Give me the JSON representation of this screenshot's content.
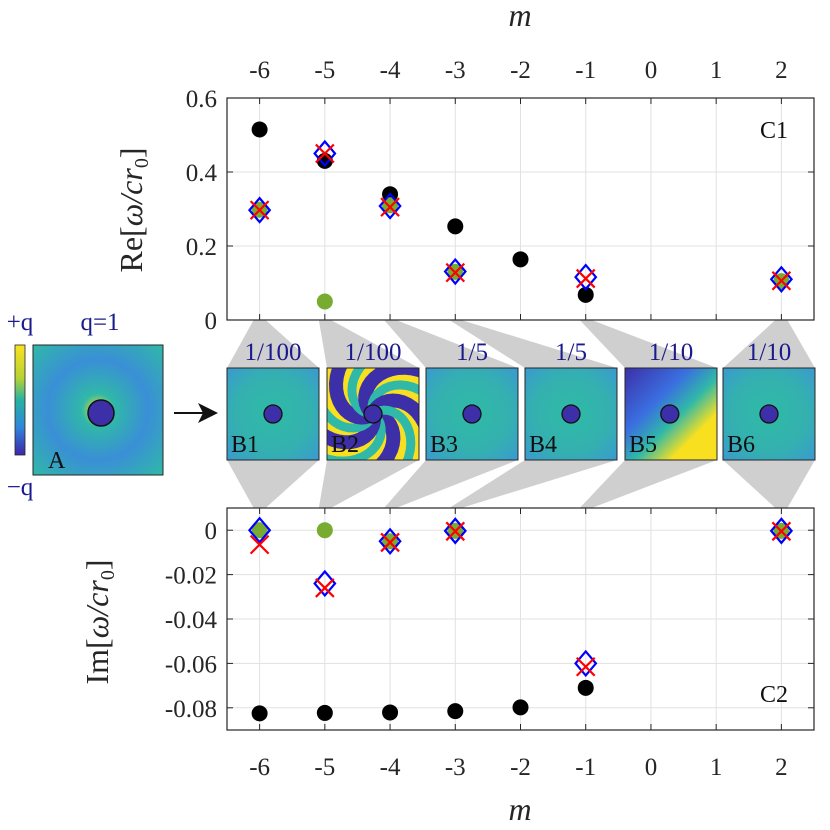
{
  "chart_data": [
    {
      "id": "C1",
      "type": "scatter",
      "panel_label": "C1",
      "top_xlabel": "m",
      "ylabel_prefix": "Re",
      "ylabel_frac": "ω/cr",
      "ylabel_sub": "0",
      "x_ticks": [
        "-6",
        "-5",
        "-4",
        "-3",
        "-2",
        "-1",
        "0",
        "1",
        "2"
      ],
      "x_range": [
        -6.5,
        2.5
      ],
      "y_range": [
        0,
        0.6
      ],
      "y_ticks": [
        "0",
        "0.2",
        "0.4",
        "0.6"
      ],
      "grid": true,
      "series": [
        {
          "name": "black dots",
          "marker": "dot",
          "color": "#000000",
          "points": [
            [
              -6,
              0.515
            ],
            [
              -5,
              0.43
            ],
            [
              -4,
              0.34
            ],
            [
              -3,
              0.253
            ],
            [
              -2,
              0.164
            ],
            [
              -1,
              0.068
            ]
          ]
        },
        {
          "name": "green dots",
          "marker": "dot",
          "color": "#77ac30",
          "points": [
            [
              -6,
              0.298
            ],
            [
              -5,
              0.05
            ],
            [
              -4,
              0.31
            ],
            [
              -3,
              0.13
            ],
            [
              2,
              0.105
            ]
          ]
        },
        {
          "name": "blue diamonds",
          "marker": "diamond",
          "color": "#0000ff",
          "points": [
            [
              -6,
              0.297
            ],
            [
              -5,
              0.45
            ],
            [
              -4,
              0.308
            ],
            [
              -3,
              0.131
            ],
            [
              -1,
              0.116
            ],
            [
              2,
              0.11
            ]
          ]
        },
        {
          "name": "red crosses",
          "marker": "cross",
          "color": "#ff0000",
          "points": [
            [
              -6,
              0.297
            ],
            [
              -5,
              0.45
            ],
            [
              -4,
              0.305
            ],
            [
              -3,
              0.128
            ],
            [
              -1,
              0.112
            ],
            [
              2,
              0.106
            ]
          ]
        }
      ]
    },
    {
      "id": "C2",
      "type": "scatter",
      "panel_label": "C2",
      "bottom_xlabel": "m",
      "ylabel_prefix": "Im",
      "ylabel_frac": "ω/cr",
      "ylabel_sub": "0",
      "x_ticks": [
        "-6",
        "-5",
        "-4",
        "-3",
        "-2",
        "-1",
        "0",
        "1",
        "2"
      ],
      "x_range": [
        -6.5,
        2.5
      ],
      "y_range": [
        -0.09,
        0.01
      ],
      "y_ticks": [
        "0",
        "-0.02",
        "-0.04",
        "-0.06",
        "-0.08"
      ],
      "grid": true,
      "series": [
        {
          "name": "black dots",
          "marker": "dot",
          "color": "#000000",
          "points": [
            [
              -6,
              -0.0825
            ],
            [
              -5,
              -0.0823
            ],
            [
              -4,
              -0.0821
            ],
            [
              -3,
              -0.0815
            ],
            [
              -2,
              -0.0798
            ],
            [
              -1,
              -0.071
            ]
          ]
        },
        {
          "name": "green dots",
          "marker": "dot",
          "color": "#77ac30",
          "points": [
            [
              -6,
              0.0
            ],
            [
              -5,
              0.0
            ],
            [
              -4,
              -0.005
            ],
            [
              -3,
              -0.0003
            ],
            [
              2,
              -0.0003
            ]
          ]
        },
        {
          "name": "blue diamonds",
          "marker": "diamond",
          "color": "#0000ff",
          "points": [
            [
              -6,
              0.0
            ],
            [
              -5,
              -0.024
            ],
            [
              -4,
              -0.005
            ],
            [
              -3,
              -0.0003
            ],
            [
              -1,
              -0.06
            ],
            [
              2,
              -0.0003
            ]
          ]
        },
        {
          "name": "red crosses",
          "marker": "cross",
          "color": "#ff0000",
          "points": [
            [
              -6,
              -0.0065
            ],
            [
              -5,
              -0.026
            ],
            [
              -4,
              -0.0055
            ],
            [
              -3,
              -0.0005
            ],
            [
              -1,
              -0.0615
            ],
            [
              2,
              -0.0005
            ]
          ]
        }
      ]
    }
  ],
  "inset_A": {
    "label": "A",
    "charge": "q=1",
    "colorbar_top": "+q",
    "colorbar_bottom": "−q"
  },
  "insets_B": [
    {
      "label": "B1",
      "scale": "1/100",
      "m": -6
    },
    {
      "label": "B2",
      "scale": "1/100",
      "m": -5
    },
    {
      "label": "B3",
      "scale": "1/5",
      "m": -4
    },
    {
      "label": "B4",
      "scale": "1/5",
      "m": -3
    },
    {
      "label": "B5",
      "scale": "1/10",
      "m": -1
    },
    {
      "label": "B6",
      "scale": "1/10",
      "m": 2
    }
  ],
  "colors": {
    "field_blue": "#3a8fd6",
    "field_teal": "#30b8a8",
    "field_yellow": "#f8e020",
    "field_navy": "#3d2fa8",
    "connector": "#cfcfcf",
    "label_navy": "#1a1a8c"
  }
}
